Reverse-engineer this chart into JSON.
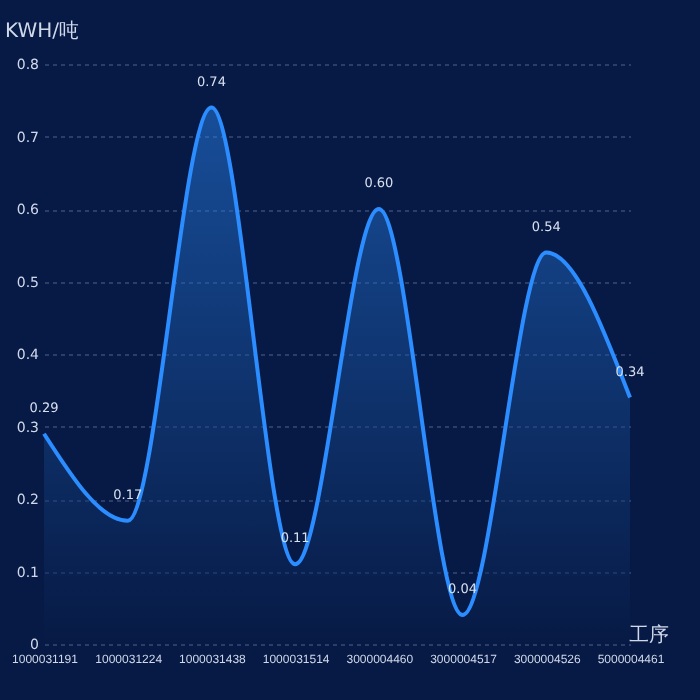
{
  "chart_data": {
    "type": "area",
    "ylabel": "KWH/吨",
    "xlabel": "工序",
    "categories": [
      "1000031191",
      "1000031224",
      "1000031438",
      "1000031514",
      "3000004460",
      "3000004517",
      "3000004526",
      "5000004461"
    ],
    "series": [
      {
        "color": "#2b8dff",
        "values": [
          0.29,
          0.17,
          0.74,
          0.11,
          0.6,
          0.04,
          0.54,
          0.34
        ],
        "value_labels": [
          "0.29",
          "0.17",
          "0.74",
          "0.11",
          "0.60",
          "0.04",
          "0.54",
          "0.34"
        ]
      }
    ],
    "ylim": [
      0,
      0.8
    ],
    "yticks": [
      0,
      0.1,
      0.2,
      0.3,
      0.4,
      0.5,
      0.6,
      0.7,
      0.8
    ],
    "grid": "y",
    "line_style": "solid",
    "marker": "none"
  }
}
